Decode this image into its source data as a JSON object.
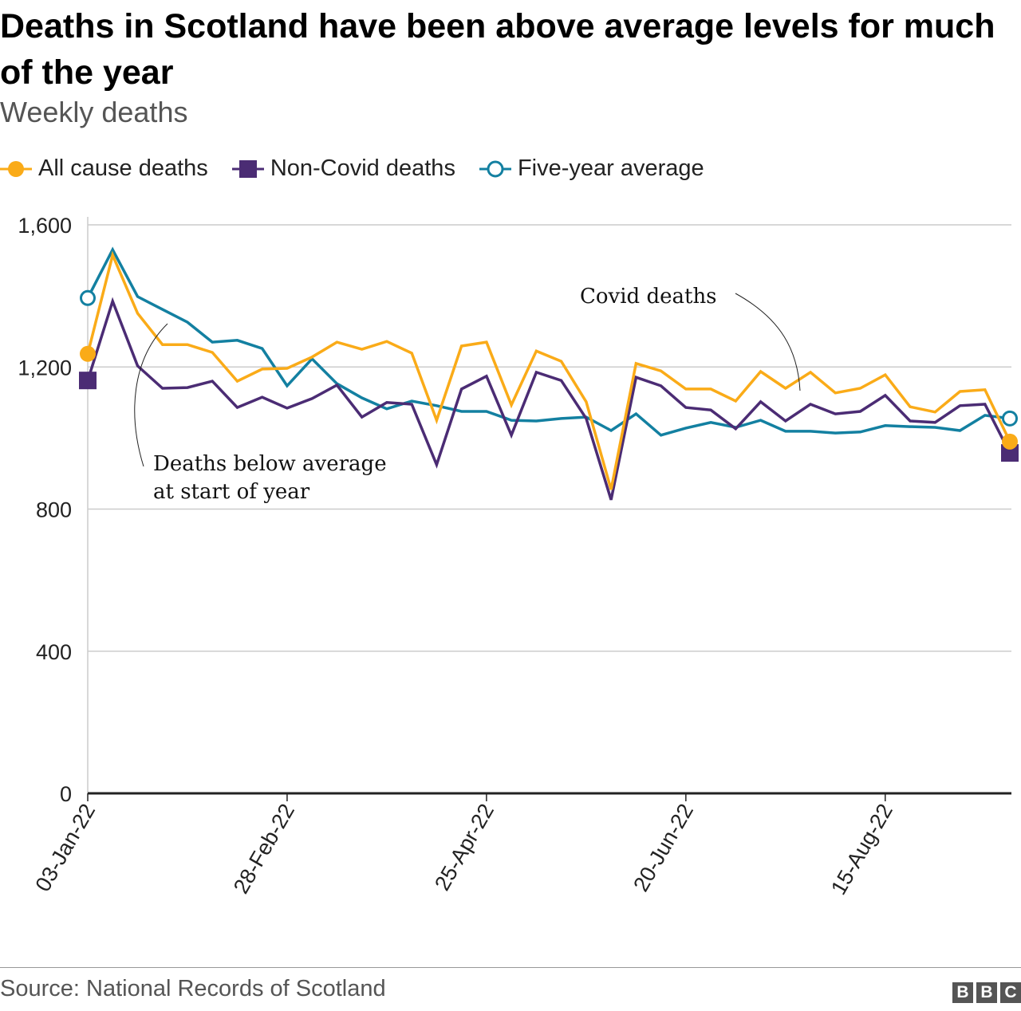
{
  "chart_data": {
    "type": "line",
    "title": "Deaths in Scotland have been above average levels for much of the year",
    "subtitle": "Weekly deaths",
    "xlabel": "",
    "ylabel": "",
    "ylim": [
      0,
      1600
    ],
    "yticks": [
      "0",
      "400",
      "800",
      "1,200",
      "1,600"
    ],
    "ytick_values": [
      0,
      400,
      800,
      1200,
      1600
    ],
    "grid": true,
    "legend_position": "top-left",
    "categories": [
      "03-Jan-22",
      "10-Jan-22",
      "17-Jan-22",
      "24-Jan-22",
      "31-Jan-22",
      "07-Feb-22",
      "14-Feb-22",
      "21-Feb-22",
      "28-Feb-22",
      "07-Mar-22",
      "14-Mar-22",
      "21-Mar-22",
      "28-Mar-22",
      "04-Apr-22",
      "11-Apr-22",
      "18-Apr-22",
      "25-Apr-22",
      "02-May-22",
      "09-May-22",
      "16-May-22",
      "23-May-22",
      "30-May-22",
      "06-Jun-22",
      "13-Jun-22",
      "20-Jun-22",
      "27-Jun-22",
      "04-Jul-22",
      "11-Jul-22",
      "18-Jul-22",
      "25-Jul-22",
      "01-Aug-22",
      "08-Aug-22",
      "15-Aug-22",
      "22-Aug-22",
      "29-Aug-22",
      "05-Sep-22",
      "12-Sep-22",
      "19-Sep-22"
    ],
    "xtick_labels": [
      "03-Jan-22",
      "28-Feb-22",
      "25-Apr-22",
      "20-Jun-22",
      "15-Aug-22"
    ],
    "series": [
      {
        "name": "All cause deaths",
        "color": "#FAAB18",
        "marker": "filled-circle",
        "values": [
          1237,
          1515,
          1351,
          1263,
          1263,
          1241,
          1160,
          1194,
          1196,
          1228,
          1270,
          1250,
          1272,
          1239,
          1050,
          1259,
          1270,
          1093,
          1245,
          1216,
          1102,
          855,
          1210,
          1189,
          1138,
          1138,
          1104,
          1187,
          1140,
          1185,
          1127,
          1140,
          1178,
          1088,
          1073,
          1131,
          1136,
          990
        ]
      },
      {
        "name": "Non-Covid deaths",
        "color": "#4B2C74",
        "marker": "filled-square",
        "values": [
          1162,
          1385,
          1203,
          1140,
          1142,
          1160,
          1086,
          1115,
          1084,
          1111,
          1149,
          1059,
          1100,
          1095,
          925,
          1138,
          1174,
          1008,
          1185,
          1162,
          1055,
          826,
          1171,
          1147,
          1086,
          1079,
          1026,
          1102,
          1048,
          1095,
          1068,
          1075,
          1120,
          1048,
          1044,
          1091,
          1095,
          958
        ]
      },
      {
        "name": "Five-year average",
        "color": "#1380A1",
        "marker": "open-circle",
        "values": [
          1394,
          1530,
          1398,
          1362,
          1326,
          1270,
          1275,
          1252,
          1147,
          1223,
          1153,
          1113,
          1082,
          1104,
          1091,
          1075,
          1075,
          1050,
          1048,
          1055,
          1059,
          1021,
          1068,
          1008,
          1028,
          1044,
          1030,
          1050,
          1019,
          1019,
          1014,
          1017,
          1035,
          1032,
          1030,
          1021,
          1064,
          1055
        ]
      }
    ],
    "annotations": {
      "below_average_line1": "Deaths below average",
      "below_average_line2": "at start of year",
      "covid": "Covid deaths"
    }
  },
  "footer": {
    "source": "Source: National Records of Scotland",
    "logo": [
      "B",
      "B",
      "C"
    ]
  }
}
